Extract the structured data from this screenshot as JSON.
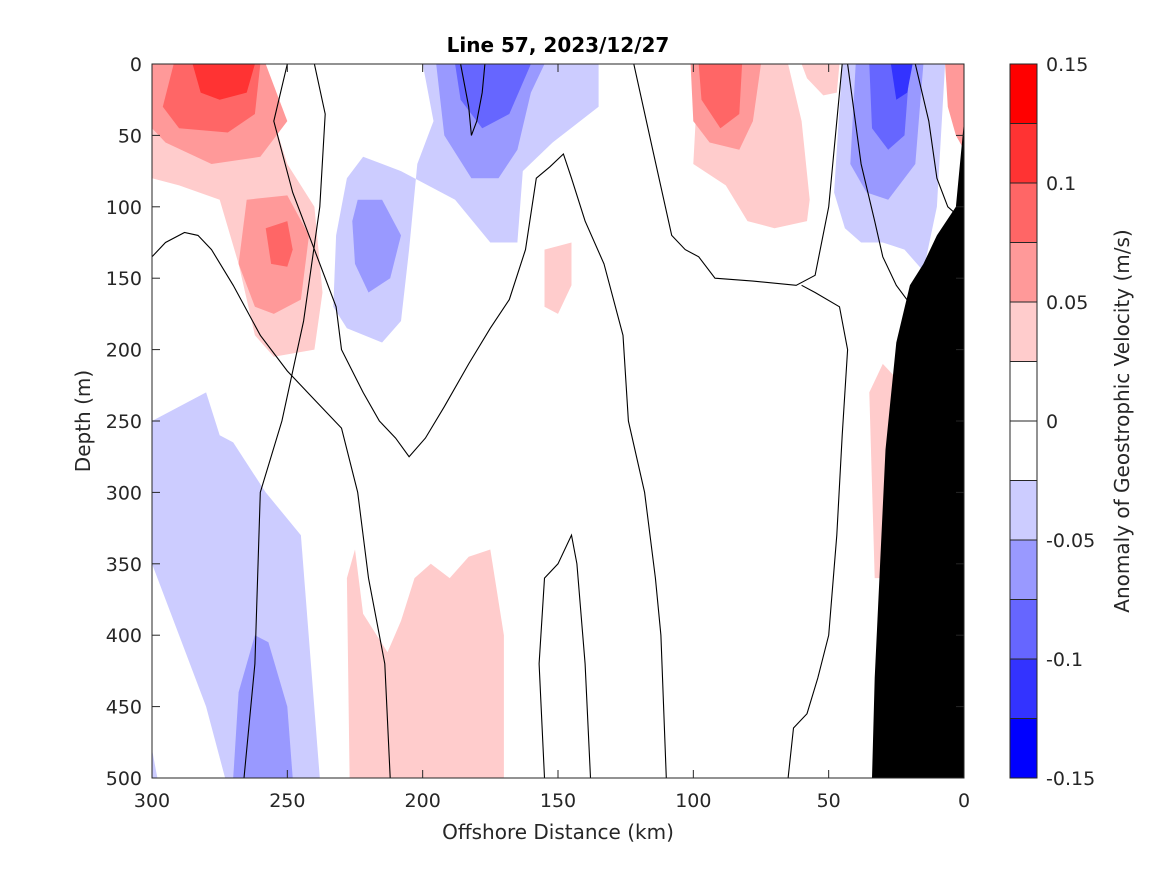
{
  "chart_data": {
    "type": "heatmap",
    "title": "Line 57, 2023/12/27",
    "xlabel": "Offshore Distance (km)",
    "ylabel": "Depth (m)",
    "xlim": [
      300,
      0
    ],
    "ylim": [
      0,
      500
    ],
    "x_ticks": [
      "300",
      "250",
      "200",
      "150",
      "100",
      "50",
      "0"
    ],
    "x_tick_values": [
      300,
      250,
      200,
      150,
      100,
      50,
      0
    ],
    "y_ticks": [
      "0",
      "50",
      "100",
      "150",
      "200",
      "250",
      "300",
      "350",
      "400",
      "450",
      "500"
    ],
    "y_tick_values": [
      0,
      50,
      100,
      150,
      200,
      250,
      300,
      350,
      400,
      450,
      500
    ],
    "colorbar": {
      "label": "Anomaly of Geostrophic Velocity (m/s)",
      "range": [
        -0.15,
        0.15
      ],
      "tick_labels": [
        "0.15",
        "0.1",
        "0.05",
        "0",
        "-0.05",
        "-0.1",
        "-0.15"
      ],
      "tick_values": [
        0.15,
        0.1,
        0.05,
        0,
        -0.05,
        -0.1,
        -0.15
      ],
      "colors_top_to_bottom": [
        "#ff0000",
        "#ff3333",
        "#ff6666",
        "#ff9999",
        "#ffcccc",
        "#ffffff",
        "#ffffff",
        "#ccccff",
        "#9999ff",
        "#6666ff",
        "#3333ff",
        "#0000ff"
      ]
    },
    "contour_fill": [
      {
        "color": "#ffcccc",
        "points": [
          [
            300,
            0
          ],
          [
            262,
            0
          ],
          [
            255,
            40
          ],
          [
            250,
            70
          ],
          [
            240,
            100
          ],
          [
            237,
            160
          ],
          [
            240,
            200
          ],
          [
            255,
            205
          ],
          [
            262,
            190
          ],
          [
            268,
            140
          ],
          [
            275,
            95
          ],
          [
            290,
            85
          ],
          [
            300,
            80
          ]
        ]
      },
      {
        "color": "#ff9999",
        "points": [
          [
            300,
            0
          ],
          [
            258,
            0
          ],
          [
            250,
            40
          ],
          [
            260,
            65
          ],
          [
            278,
            70
          ],
          [
            295,
            55
          ],
          [
            300,
            45
          ]
        ]
      },
      {
        "color": "#ff9999",
        "points": [
          [
            265,
            95
          ],
          [
            250,
            92
          ],
          [
            242,
            120
          ],
          [
            245,
            165
          ],
          [
            255,
            175
          ],
          [
            262,
            170
          ],
          [
            268,
            140
          ]
        ]
      },
      {
        "color": "#ff6666",
        "points": [
          [
            292,
            0
          ],
          [
            260,
            0
          ],
          [
            262,
            35
          ],
          [
            272,
            48
          ],
          [
            290,
            45
          ],
          [
            296,
            30
          ]
        ]
      },
      {
        "color": "#ff6666",
        "points": [
          [
            258,
            115
          ],
          [
            250,
            110
          ],
          [
            248,
            130
          ],
          [
            250,
            142
          ],
          [
            256,
            140
          ]
        ]
      },
      {
        "color": "#ff3333",
        "points": [
          [
            285,
            0
          ],
          [
            262,
            0
          ],
          [
            265,
            20
          ],
          [
            275,
            25
          ],
          [
            282,
            20
          ]
        ]
      },
      {
        "color": "#ccccff",
        "points": [
          [
            200,
            0
          ],
          [
            135,
            0
          ],
          [
            135,
            30
          ],
          [
            152,
            55
          ],
          [
            163,
            75
          ],
          [
            165,
            125
          ],
          [
            175,
            125
          ],
          [
            188,
            95
          ],
          [
            208,
            75
          ],
          [
            222,
            65
          ],
          [
            228,
            80
          ],
          [
            232,
            120
          ],
          [
            233,
            170
          ],
          [
            228,
            185
          ],
          [
            215,
            195
          ],
          [
            208,
            180
          ],
          [
            205,
            130
          ],
          [
            202,
            70
          ],
          [
            196,
            40
          ]
        ]
      },
      {
        "color": "#9999ff",
        "points": [
          [
            195,
            0
          ],
          [
            155,
            0
          ],
          [
            160,
            20
          ],
          [
            165,
            60
          ],
          [
            172,
            80
          ],
          [
            182,
            80
          ],
          [
            192,
            50
          ]
        ]
      },
      {
        "color": "#9999ff",
        "points": [
          [
            224,
            95
          ],
          [
            215,
            95
          ],
          [
            208,
            120
          ],
          [
            212,
            150
          ],
          [
            220,
            160
          ],
          [
            225,
            140
          ],
          [
            226,
            110
          ]
        ]
      },
      {
        "color": "#6666ff",
        "points": [
          [
            188,
            0
          ],
          [
            160,
            0
          ],
          [
            168,
            35
          ],
          [
            178,
            45
          ],
          [
            186,
            25
          ]
        ]
      },
      {
        "color": "#ccccff",
        "points": [
          [
            300,
            250
          ],
          [
            280,
            230
          ],
          [
            275,
            260
          ],
          [
            270,
            265
          ],
          [
            258,
            300
          ],
          [
            245,
            330
          ],
          [
            238,
            500
          ],
          [
            273,
            500
          ],
          [
            280,
            450
          ],
          [
            290,
            400
          ],
          [
            300,
            350
          ]
        ]
      },
      {
        "color": "#9999ff",
        "points": [
          [
            270,
            500
          ],
          [
            248,
            500
          ],
          [
            250,
            450
          ],
          [
            257,
            405
          ],
          [
            262,
            400
          ],
          [
            268,
            440
          ]
        ]
      },
      {
        "color": "#ccccff",
        "points": [
          [
            300,
            480
          ],
          [
            298,
            500
          ],
          [
            300,
            500
          ]
        ]
      },
      {
        "color": "#ffcccc",
        "points": [
          [
            227,
            500
          ],
          [
            170,
            500
          ],
          [
            170,
            400
          ],
          [
            175,
            340
          ],
          [
            183,
            345
          ],
          [
            190,
            360
          ],
          [
            197,
            350
          ],
          [
            203,
            360
          ],
          [
            208,
            390
          ],
          [
            213,
            412
          ],
          [
            222,
            385
          ],
          [
            225,
            340
          ],
          [
            228,
            360
          ]
        ]
      },
      {
        "color": "#ffcccc",
        "points": [
          [
            98,
            0
          ],
          [
            65,
            0
          ],
          [
            60,
            40
          ],
          [
            57,
            95
          ],
          [
            58,
            110
          ],
          [
            70,
            115
          ],
          [
            80,
            110
          ],
          [
            88,
            85
          ],
          [
            100,
            70
          ]
        ]
      },
      {
        "color": "#ff9999",
        "points": [
          [
            101,
            0
          ],
          [
            75,
            0
          ],
          [
            78,
            40
          ],
          [
            83,
            60
          ],
          [
            94,
            55
          ],
          [
            100,
            40
          ]
        ]
      },
      {
        "color": "#ff6666",
        "points": [
          [
            98,
            0
          ],
          [
            82,
            0
          ],
          [
            83,
            35
          ],
          [
            90,
            45
          ],
          [
            97,
            25
          ]
        ]
      },
      {
        "color": "#ffcccc",
        "points": [
          [
            60,
            0
          ],
          [
            46,
            0
          ],
          [
            47,
            20
          ],
          [
            52,
            22
          ],
          [
            58,
            10
          ]
        ]
      },
      {
        "color": "#ffcccc",
        "points": [
          [
            155,
            130
          ],
          [
            145,
            125
          ],
          [
            145,
            155
          ],
          [
            150,
            175
          ],
          [
            155,
            170
          ]
        ]
      },
      {
        "color": "#ccccff",
        "points": [
          [
            45,
            0
          ],
          [
            7,
            0
          ],
          [
            10,
            100
          ],
          [
            15,
            145
          ],
          [
            22,
            130
          ],
          [
            30,
            125
          ],
          [
            38,
            125
          ],
          [
            44,
            115
          ],
          [
            48,
            90
          ]
        ]
      },
      {
        "color": "#9999ff",
        "points": [
          [
            40,
            0
          ],
          [
            15,
            0
          ],
          [
            18,
            70
          ],
          [
            28,
            95
          ],
          [
            36,
            90
          ],
          [
            42,
            70
          ]
        ]
      },
      {
        "color": "#6666ff",
        "points": [
          [
            35,
            0
          ],
          [
            20,
            0
          ],
          [
            22,
            50
          ],
          [
            28,
            60
          ],
          [
            34,
            45
          ]
        ]
      },
      {
        "color": "#3333ff",
        "points": [
          [
            27,
            0
          ],
          [
            19,
            0
          ],
          [
            21,
            20
          ],
          [
            25,
            25
          ]
        ]
      },
      {
        "color": "#ffcccc",
        "points": [
          [
            35,
            230
          ],
          [
            30,
            210
          ],
          [
            25,
            220
          ],
          [
            28,
            360
          ],
          [
            33,
            360
          ]
        ]
      },
      {
        "color": "#ff9999",
        "points": [
          [
            7,
            0
          ],
          [
            2,
            0
          ],
          [
            0,
            0
          ],
          [
            0,
            60
          ],
          [
            3,
            50
          ],
          [
            6,
            30
          ]
        ]
      }
    ],
    "contour_lines": [
      [
        [
          300,
          135
        ],
        [
          295,
          125
        ],
        [
          288,
          118
        ],
        [
          283,
          120
        ],
        [
          278,
          130
        ],
        [
          270,
          155
        ],
        [
          260,
          190
        ],
        [
          250,
          215
        ],
        [
          240,
          235
        ],
        [
          230,
          255
        ],
        [
          224,
          300
        ],
        [
          220,
          360
        ],
        [
          214,
          420
        ],
        [
          213,
          460
        ],
        [
          212,
          500
        ]
      ],
      [
        [
          240,
          0
        ],
        [
          236,
          35
        ],
        [
          238,
          100
        ],
        [
          244,
          180
        ],
        [
          252,
          250
        ],
        [
          260,
          300
        ],
        [
          262,
          420
        ],
        [
          266,
          500
        ]
      ],
      [
        [
          250,
          0
        ],
        [
          255,
          40
        ],
        [
          248,
          90
        ],
        [
          240,
          130
        ],
        [
          232,
          170
        ],
        [
          230,
          200
        ],
        [
          222,
          230
        ],
        [
          216,
          250
        ],
        [
          210,
          262
        ],
        [
          205,
          275
        ],
        [
          199,
          262
        ],
        [
          192,
          240
        ],
        [
          183,
          210
        ],
        [
          175,
          185
        ],
        [
          168,
          165
        ],
        [
          162,
          130
        ],
        [
          158,
          80
        ],
        [
          153,
          72
        ],
        [
          148,
          63
        ],
        [
          145,
          80
        ],
        [
          140,
          110
        ],
        [
          133,
          140
        ],
        [
          126,
          190
        ],
        [
          124,
          250
        ],
        [
          118,
          300
        ],
        [
          114,
          360
        ],
        [
          112,
          400
        ],
        [
          110,
          500
        ]
      ],
      [
        [
          186,
          0
        ],
        [
          183,
          30
        ],
        [
          182,
          50
        ],
        [
          180,
          40
        ],
        [
          178,
          20
        ],
        [
          177,
          0
        ]
      ],
      [
        [
          155,
          500
        ],
        [
          157,
          420
        ],
        [
          155,
          360
        ],
        [
          150,
          350
        ],
        [
          145,
          330
        ],
        [
          143,
          350
        ],
        [
          140,
          420
        ],
        [
          138,
          500
        ]
      ],
      [
        [
          122,
          0
        ],
        [
          115,
          60
        ],
        [
          108,
          120
        ],
        [
          103,
          130
        ],
        [
          98,
          135
        ],
        [
          92,
          150
        ],
        [
          78,
          152
        ],
        [
          62,
          155
        ],
        [
          55,
          148
        ],
        [
          50,
          100
        ],
        [
          45,
          0
        ]
      ],
      [
        [
          43,
          0
        ],
        [
          38,
          70
        ],
        [
          33,
          110
        ],
        [
          30,
          135
        ],
        [
          25,
          155
        ],
        [
          16,
          178
        ],
        [
          8,
          200
        ],
        [
          5,
          250
        ],
        [
          5,
          300
        ],
        [
          10,
          350
        ],
        [
          15,
          400
        ],
        [
          20,
          450
        ],
        [
          28,
          500
        ]
      ],
      [
        [
          18,
          0
        ],
        [
          13,
          40
        ],
        [
          10,
          80
        ],
        [
          6,
          100
        ],
        [
          0,
          110
        ]
      ],
      [
        [
          65,
          500
        ],
        [
          63,
          465
        ],
        [
          58,
          455
        ],
        [
          54,
          430
        ],
        [
          50,
          400
        ],
        [
          47,
          330
        ],
        [
          45,
          260
        ],
        [
          43,
          200
        ],
        [
          46,
          170
        ],
        [
          55,
          160
        ],
        [
          60,
          155
        ]
      ]
    ],
    "bathymetry": {
      "color": "#000000",
      "points": [
        [
          0,
          40
        ],
        [
          3,
          100
        ],
        [
          10,
          120
        ],
        [
          15,
          140
        ],
        [
          20,
          155
        ],
        [
          25,
          195
        ],
        [
          29,
          270
        ],
        [
          31,
          350
        ],
        [
          33,
          430
        ],
        [
          34,
          500
        ],
        [
          0,
          500
        ]
      ]
    }
  }
}
